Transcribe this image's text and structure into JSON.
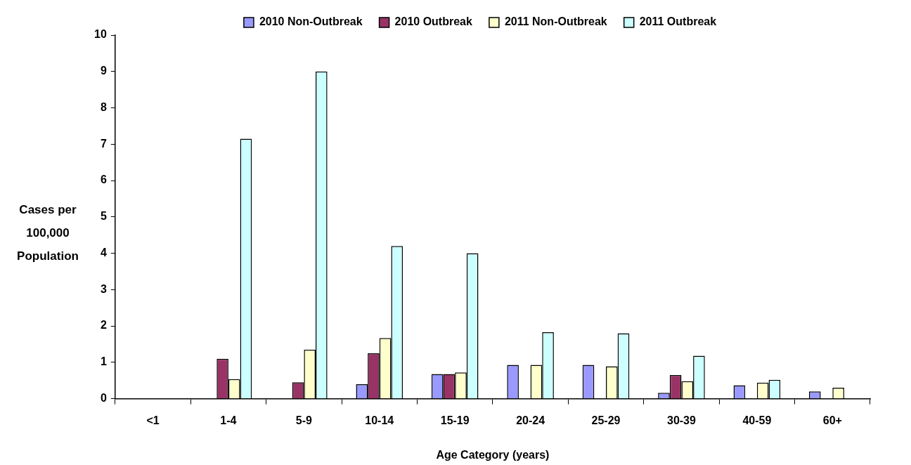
{
  "chart_data": {
    "type": "bar",
    "xlabel": "Age Category (years)",
    "ylabel": "Cases per 100,000 Population",
    "categories": [
      "<1",
      "1-4",
      "5-9",
      "10-14",
      "15-19",
      "20-24",
      "25-29",
      "30-39",
      "40-59",
      "60+"
    ],
    "series": [
      {
        "name": "2010 Non-Outbreak",
        "color": "#9999ff",
        "values": [
          null,
          null,
          null,
          0.4,
          0.68,
          0.93,
          0.93,
          0.16,
          0.37,
          0.2
        ]
      },
      {
        "name": "2010 Outbreak",
        "color": "#993366",
        "values": [
          null,
          1.1,
          0.45,
          1.25,
          0.68,
          null,
          null,
          0.65,
          null,
          null
        ]
      },
      {
        "name": "2011 Non-Outbreak",
        "color": "#ffffcc",
        "values": [
          null,
          0.54,
          1.35,
          1.67,
          0.72,
          0.93,
          0.89,
          0.48,
          0.44,
          0.3
        ]
      },
      {
        "name": "2011 Outbreak",
        "color": "#ccffff",
        "values": [
          null,
          7.15,
          9.0,
          4.2,
          4.0,
          1.83,
          1.8,
          1.18,
          0.52,
          null
        ]
      }
    ],
    "ylim": [
      0,
      10
    ],
    "yticks": [
      0,
      1,
      2,
      3,
      4,
      5,
      6,
      7,
      8,
      9,
      10
    ],
    "grid": false,
    "legend": "top"
  }
}
